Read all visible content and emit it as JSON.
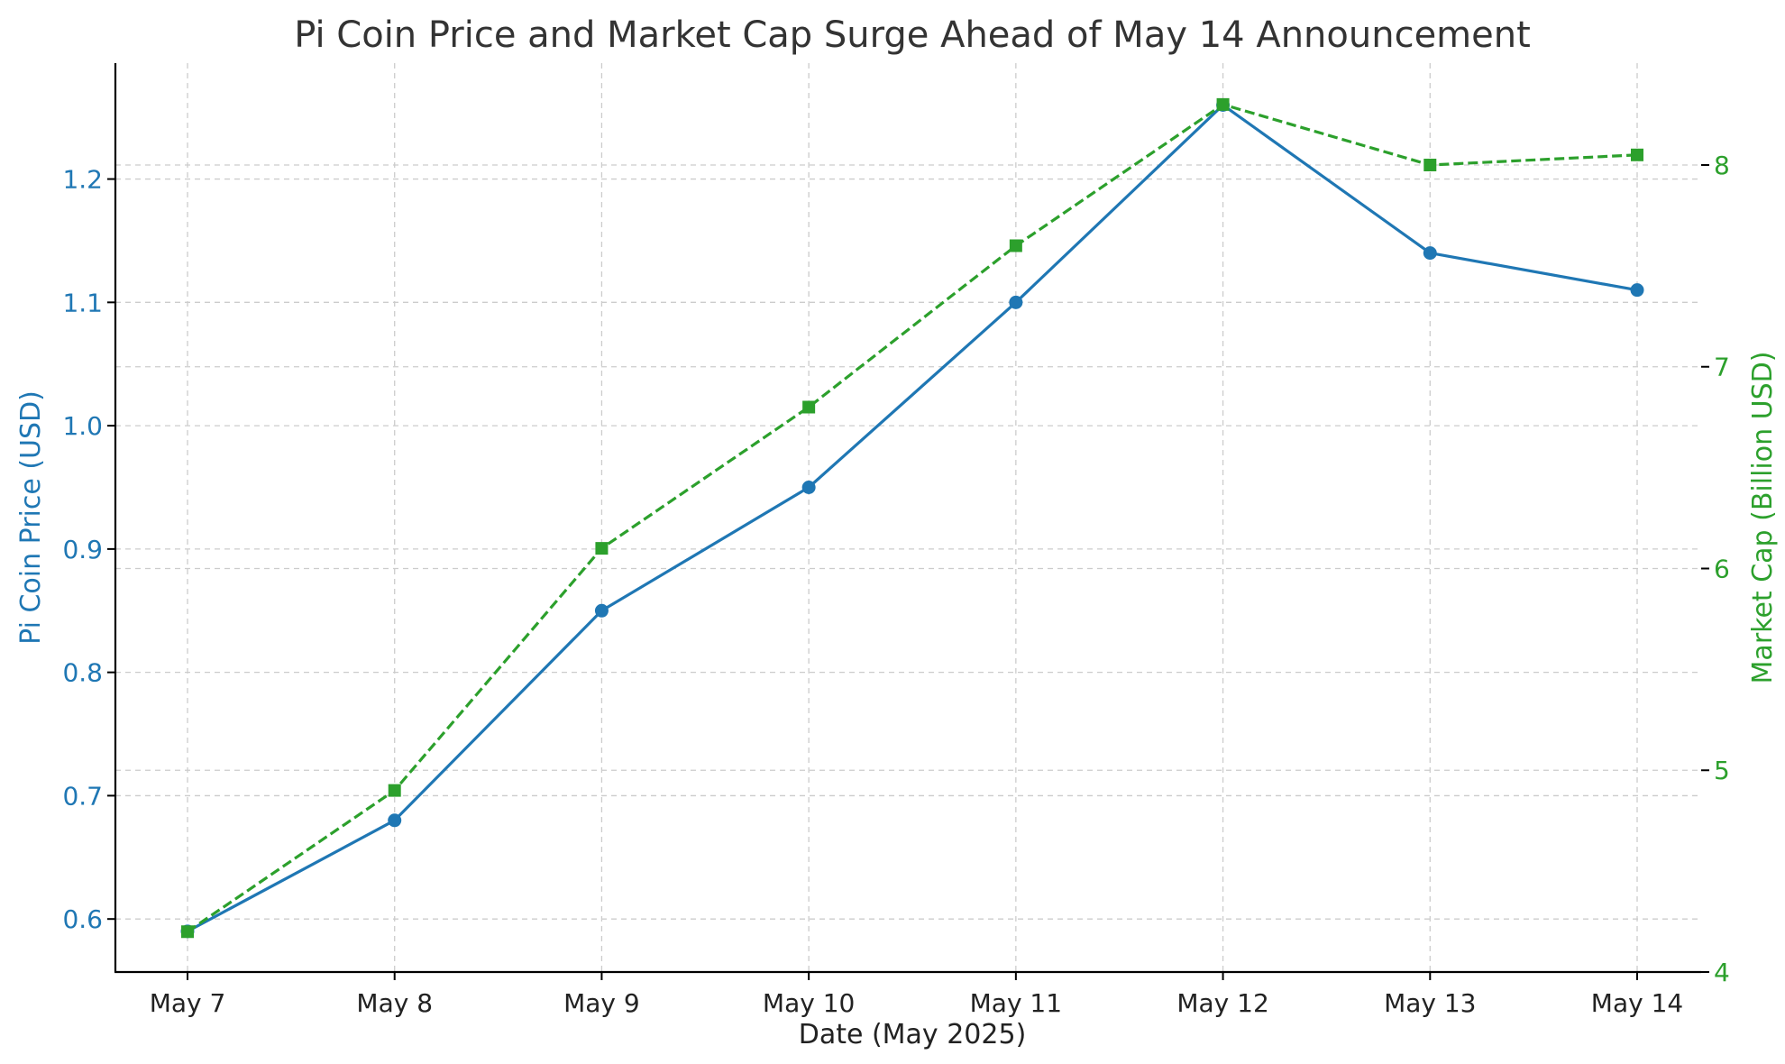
{
  "chart_data": {
    "type": "line",
    "title": "Pi Coin Price and Market Cap Surge Ahead of May 14 Announcement",
    "xlabel": "Date (May 2025)",
    "categories": [
      "May 7",
      "May 8",
      "May 9",
      "May 10",
      "May 11",
      "May 12",
      "May 13",
      "May 14"
    ],
    "grid": true,
    "series": [
      {
        "axis": "left",
        "color": "#1f77b4",
        "line_style": "solid",
        "marker": "circle",
        "values": [
          0.59,
          0.68,
          0.85,
          0.95,
          1.1,
          1.26,
          1.14,
          1.11
        ]
      },
      {
        "axis": "right",
        "color": "#2ca02c",
        "line_style": "dashed",
        "marker": "square",
        "values": [
          4.2,
          4.9,
          6.1,
          6.8,
          7.6,
          8.3,
          8.0,
          8.05
        ]
      }
    ],
    "y_left": {
      "label": "Pi Coin Price (USD)",
      "color": "#1f77b4",
      "range": [
        0.557,
        1.294
      ],
      "ticks": [
        0.6,
        0.7,
        0.8,
        0.9,
        1.0,
        1.1,
        1.2
      ],
      "tick_labels": [
        "0.6",
        "0.7",
        "0.8",
        "0.9",
        "1.0",
        "1.1",
        "1.2"
      ]
    },
    "y_right": {
      "label": "Market Cap (Billion USD)",
      "color": "#2ca02c",
      "range": [
        4.0,
        8.505
      ],
      "ticks": [
        4,
        5,
        6,
        7,
        8
      ],
      "tick_labels": [
        "4",
        "5",
        "6",
        "7",
        "8"
      ]
    }
  }
}
